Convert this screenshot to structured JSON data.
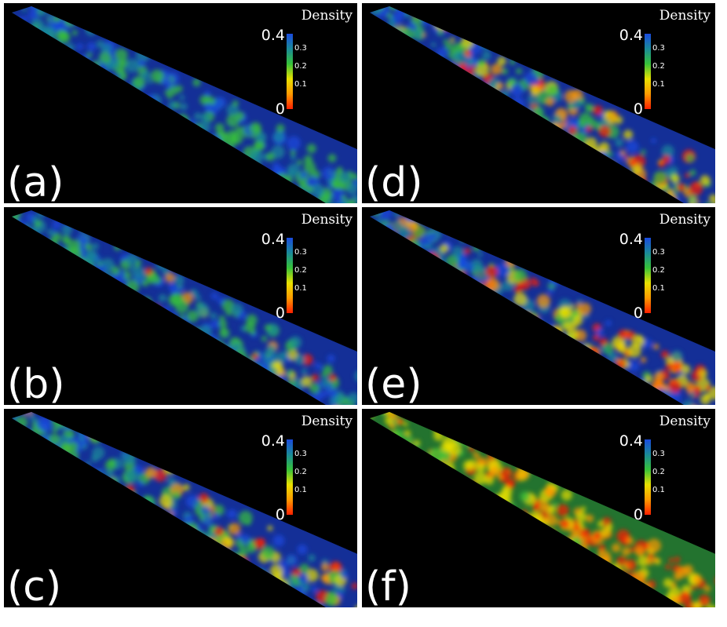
{
  "colorbar": {
    "title": "Density",
    "max_label": "0.4",
    "min_label": "0",
    "minor_ticks": [
      "0.3",
      "0.2",
      "0.1"
    ],
    "colors": [
      "#ff2000",
      "#ff9a00",
      "#e8e000",
      "#36c23a",
      "#1a8a9a",
      "#1a4adf"
    ]
  },
  "panels": [
    {
      "label": "(a)",
      "base_color": "#1b3fc9",
      "intensity": 0.0
    },
    {
      "label": "(b)",
      "base_color": "#1b3fc9",
      "intensity": 0.08
    },
    {
      "label": "(c)",
      "base_color": "#1b3fc9",
      "intensity": 0.25
    },
    {
      "label": "(d)",
      "base_color": "#1b3fc9",
      "intensity": 0.5
    },
    {
      "label": "(e)",
      "base_color": "#1b3fc9",
      "intensity": 0.65
    },
    {
      "label": "(f)",
      "base_color": "#2f9a3f",
      "intensity": 1.0
    }
  ]
}
